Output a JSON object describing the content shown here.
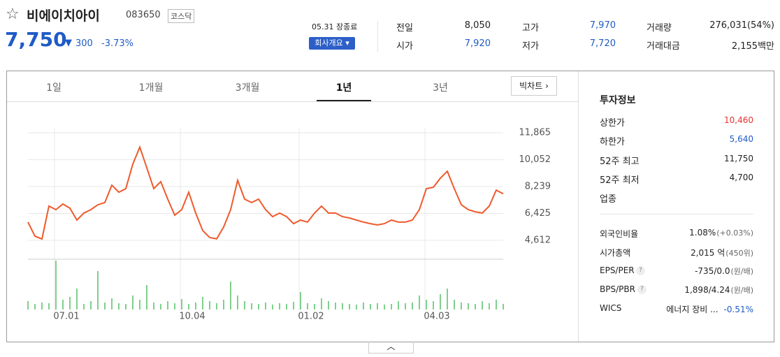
{
  "header": {
    "name": "비에이치아이",
    "code": "083650",
    "market": "코스닥",
    "price": "7,750",
    "change": "300",
    "change_rate": "-3.73%",
    "status": "05.31 장종료",
    "company_button": "회사개요"
  },
  "summary": [
    [
      "전일",
      "8,050"
    ],
    [
      "고가",
      "7,970"
    ],
    [
      "거래량",
      "276,031(54%)"
    ],
    [
      "시가",
      "7,920"
    ],
    [
      "저가",
      "7,720"
    ],
    [
      "거래대금",
      "2,155백만"
    ]
  ],
  "tabs": [
    "1일",
    "1개월",
    "3개월",
    "1년",
    "3년"
  ],
  "big_chart": "빅차트",
  "invest": {
    "title": "투자정보",
    "rows": [
      [
        "상한가",
        "10,460"
      ],
      [
        "하한가",
        "5,640"
      ],
      [
        "52주 최고",
        "11,750"
      ],
      [
        "52주 최저",
        "4,700"
      ]
    ],
    "sector": "업종",
    "rows2": [
      [
        "외국인비율",
        "1.08%",
        "(+0.03%)"
      ],
      [
        "시가총액",
        "2,015 억",
        "(450위)"
      ],
      [
        "EPS/PER",
        "-735/0.0",
        "(원/배)"
      ],
      [
        "BPS/PBR",
        "1,898/4.24",
        "(원/배)"
      ],
      [
        "WICS",
        "에너지 장비 ...",
        "-0.51%"
      ]
    ]
  },
  "chart_data": [
    {
      "type": "line",
      "color": "#ef5a2c",
      "grid": true,
      "categories": [
        null,
        null,
        null,
        null,
        "07.01",
        null,
        null,
        null,
        null,
        null,
        null,
        null,
        null,
        null,
        null,
        null,
        null,
        null,
        null,
        null,
        null,
        null,
        "10.04",
        null,
        null,
        null,
        null,
        null,
        null,
        null,
        null,
        null,
        null,
        null,
        null,
        null,
        null,
        null,
        null,
        "01.02",
        null,
        null,
        null,
        null,
        null,
        null,
        null,
        null,
        null,
        null,
        null,
        null,
        null,
        null,
        null,
        null,
        null,
        "04.03",
        null,
        null,
        null,
        null,
        null,
        null,
        null,
        null,
        null,
        null,
        null
      ],
      "values": [
        5840,
        4890,
        4700,
        6920,
        6680,
        7060,
        6780,
        5980,
        6450,
        6680,
        7010,
        7160,
        8330,
        7860,
        8100,
        9750,
        10900,
        9510,
        8100,
        8570,
        7390,
        6310,
        6680,
        7860,
        6450,
        5270,
        4800,
        4710,
        5510,
        6680,
        8660,
        7390,
        7160,
        7390,
        6680,
        6210,
        6450,
        6210,
        5740,
        5980,
        5840,
        6450,
        6920,
        6450,
        6450,
        6210,
        6120,
        5980,
        5840,
        5740,
        5650,
        5740,
        5980,
        5840,
        5840,
        5980,
        6680,
        8100,
        8190,
        8800,
        9270,
        8100,
        7010,
        6680,
        6540,
        6450,
        6920,
        8000,
        7750
      ],
      "ylim": [
        3480,
        12200
      ],
      "yticks": [
        {
          "value": 11865,
          "label": "11,865"
        },
        {
          "value": 10052,
          "label": "10,052"
        },
        {
          "value": 8239,
          "label": "8,239"
        },
        {
          "value": 6425,
          "label": "6,425"
        },
        {
          "value": 4612,
          "label": "4,612"
        }
      ]
    },
    {
      "type": "bar",
      "color": "#7fd08d",
      "values": [
        12,
        8,
        10,
        9,
        70,
        14,
        18,
        30,
        8,
        12,
        55,
        10,
        16,
        9,
        8,
        20,
        14,
        35,
        10,
        8,
        12,
        9,
        15,
        8,
        10,
        18,
        12,
        9,
        14,
        40,
        20,
        12,
        9,
        8,
        10,
        7,
        9,
        8,
        11,
        25,
        9,
        8,
        16,
        12,
        10,
        9,
        8,
        7,
        10,
        8,
        9,
        7,
        8,
        12,
        9,
        10,
        20,
        14,
        12,
        22,
        30,
        14,
        10,
        9,
        8,
        12,
        9,
        14,
        8
      ],
      "ylim": [
        0,
        70
      ]
    }
  ]
}
